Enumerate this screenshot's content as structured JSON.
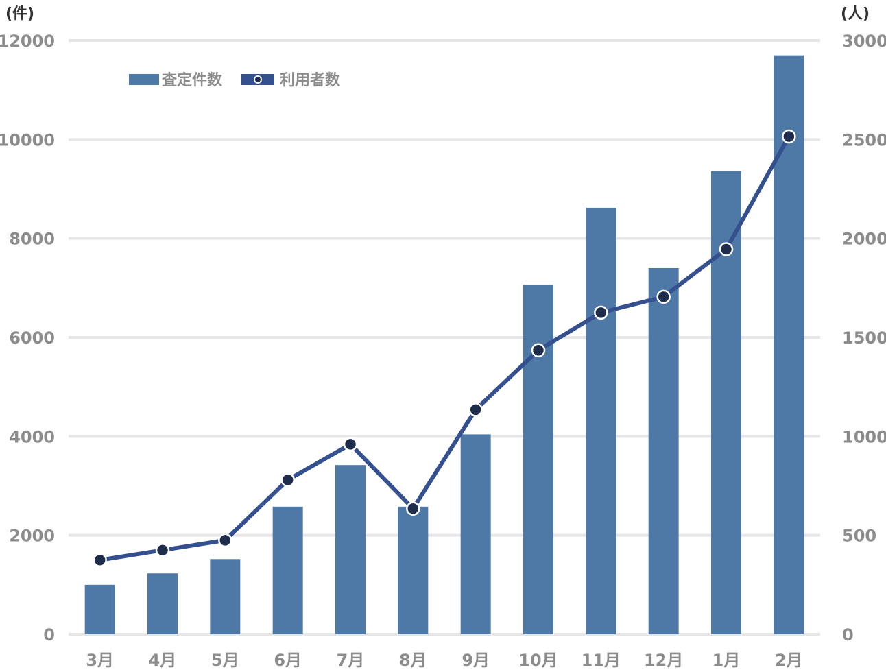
{
  "colors": {
    "bar": "#4e79a7",
    "line": "#34508f",
    "marker_fill": "#1f2d4d",
    "marker_stroke": "#ffffff",
    "grid": "#e6e6e6",
    "tick_text": "#8c8c8c",
    "unit_text": "#333333"
  },
  "chart_data": {
    "type": "bar",
    "categories": [
      "3月",
      "4月",
      "5月",
      "6月",
      "7月",
      "8月",
      "9月",
      "10月",
      "11月",
      "12月",
      "1月",
      "2月"
    ],
    "series": [
      {
        "name": "査定件数",
        "type": "bar",
        "axis": "left",
        "values": [
          1000,
          1230,
          1520,
          2580,
          3420,
          2580,
          4040,
          7060,
          8620,
          7400,
          9360,
          11700
        ]
      },
      {
        "name": "利用者数",
        "type": "line",
        "axis": "right",
        "values": [
          375,
          425,
          475,
          780,
          960,
          635,
          1135,
          1435,
          1625,
          1705,
          1945,
          2515
        ]
      }
    ],
    "yleft": {
      "unit": "(件)",
      "ylim": [
        0,
        12000
      ],
      "ticks": [
        "0",
        "2000",
        "4000",
        "6000",
        "8000",
        "10000",
        "12000"
      ]
    },
    "yright": {
      "unit": "(人)",
      "ylim": [
        0,
        3000
      ],
      "ticks": [
        "0",
        "500",
        "1000",
        "1500",
        "2000",
        "2500",
        "3000"
      ]
    },
    "grid": true,
    "legend": "top-left",
    "title": "",
    "xlabel": ""
  }
}
